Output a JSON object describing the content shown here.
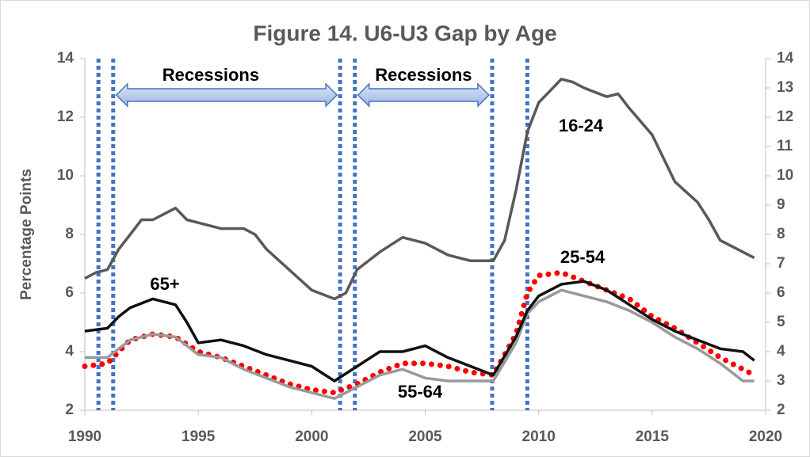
{
  "chart_data": {
    "type": "line",
    "title": "Figure 14. U6-U3 Gap by Age",
    "y_label": "Percentage Points",
    "xlim": [
      1990,
      2020
    ],
    "xticks": [
      1990,
      1995,
      2000,
      2005,
      2010,
      2015,
      2020
    ],
    "ylim": [
      2,
      14
    ],
    "yticks": [
      2,
      4,
      6,
      8,
      10,
      12,
      14
    ],
    "y2lim": [
      2,
      14
    ],
    "y2ticks": [
      2,
      3,
      4,
      5,
      6,
      7,
      8,
      9,
      10,
      11,
      12,
      13,
      14
    ],
    "recession_lines": [
      1990.6,
      1991.25,
      2001.25,
      2001.9,
      2007.95,
      2009.5
    ],
    "recession_labels": [
      "Recessions",
      "Recessions"
    ],
    "series": [
      {
        "name": "16-24",
        "color": "#595959",
        "style": "solid",
        "x": [
          1990,
          1990.5,
          1991,
          1991.5,
          1992,
          1992.5,
          1993,
          1994,
          1994.5,
          1995,
          1996,
          1997,
          1997.5,
          1998,
          1999,
          2000,
          2001,
          2001.5,
          2002,
          2003,
          2004,
          2005,
          2006,
          2007,
          2008,
          2008.5,
          2009,
          2009.5,
          2010,
          2010.5,
          2011,
          2011.5,
          2012,
          2013,
          2013.5,
          2014,
          2015,
          2016,
          2017,
          2017.5,
          2018,
          2019,
          2019.5
        ],
        "values": [
          6.5,
          6.7,
          6.8,
          7.5,
          8.0,
          8.5,
          8.5,
          8.9,
          8.5,
          8.4,
          8.2,
          8.2,
          8.0,
          7.5,
          6.8,
          6.1,
          5.8,
          6.0,
          6.8,
          7.4,
          7.9,
          7.7,
          7.3,
          7.1,
          7.1,
          7.8,
          9.5,
          11.5,
          12.5,
          12.9,
          13.3,
          13.2,
          13.0,
          12.7,
          12.8,
          12.3,
          11.4,
          9.8,
          9.1,
          8.5,
          7.8,
          7.4,
          7.2
        ]
      },
      {
        "name": "25-54",
        "color": "#ff0000",
        "style": "dotted",
        "x": [
          1990,
          1991,
          1992,
          1993,
          1994,
          1995,
          1996,
          1997,
          1998,
          1999,
          2000,
          2001,
          2002,
          2003,
          2004,
          2005,
          2006,
          2007,
          2008,
          2009,
          2009.5,
          2010,
          2011,
          2012,
          2013,
          2014,
          2015,
          2016,
          2017,
          2018,
          2019,
          2019.5
        ],
        "values": [
          3.5,
          3.6,
          4.4,
          4.6,
          4.5,
          4.0,
          3.8,
          3.5,
          3.2,
          2.9,
          2.7,
          2.6,
          2.9,
          3.3,
          3.6,
          3.6,
          3.5,
          3.3,
          3.2,
          4.6,
          6.0,
          6.6,
          6.7,
          6.4,
          6.1,
          5.8,
          5.2,
          4.8,
          4.3,
          3.8,
          3.4,
          3.2
        ]
      },
      {
        "name": "55-64",
        "color": "#999999",
        "style": "solid",
        "x": [
          1990,
          1991,
          1992,
          1993,
          1994,
          1995,
          1996,
          1997,
          1998,
          1999,
          2000,
          2001,
          2002,
          2003,
          2004,
          2005,
          2006,
          2007,
          2008,
          2009,
          2009.5,
          2010,
          2011,
          2012,
          2013,
          2014,
          2015,
          2016,
          2017,
          2018,
          2019,
          2019.5
        ],
        "values": [
          3.8,
          3.8,
          4.4,
          4.6,
          4.5,
          3.9,
          3.8,
          3.4,
          3.1,
          2.8,
          2.6,
          2.4,
          2.8,
          3.2,
          3.4,
          3.1,
          3.0,
          3.0,
          3.0,
          4.3,
          5.3,
          5.7,
          6.1,
          5.9,
          5.7,
          5.4,
          5.0,
          4.5,
          4.1,
          3.6,
          3.0,
          3.0
        ]
      },
      {
        "name": "65+",
        "color": "#111111",
        "style": "solid",
        "x": [
          1990,
          1991,
          1991.5,
          1992,
          1993,
          1994,
          1994.5,
          1995,
          1996,
          1997,
          1998,
          1999,
          2000,
          2001,
          2002,
          2003,
          2004,
          2005,
          2006,
          2007,
          2008,
          2009,
          2009.5,
          2010,
          2011,
          2012,
          2013,
          2014,
          2015,
          2016,
          2017,
          2018,
          2019,
          2019.5
        ],
        "values": [
          4.7,
          4.8,
          5.2,
          5.5,
          5.8,
          5.6,
          5.0,
          4.3,
          4.4,
          4.2,
          3.9,
          3.7,
          3.5,
          3.0,
          3.5,
          4.0,
          4.0,
          4.2,
          3.8,
          3.5,
          3.2,
          4.5,
          5.4,
          5.9,
          6.3,
          6.4,
          6.1,
          5.6,
          5.1,
          4.7,
          4.4,
          4.1,
          4.0,
          3.7
        ]
      }
    ]
  }
}
